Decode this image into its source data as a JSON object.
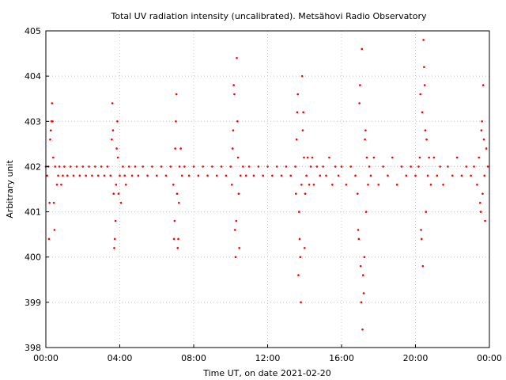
{
  "chart_data": {
    "type": "scatter",
    "title": "Total UV radiation intensity (uncalibrated). Metsähovi Radio Observatory",
    "xlabel": "Time UT, on date 2021-02-20",
    "ylabel": "Arbitrary unit",
    "xlim": [
      "00:00",
      "24:00"
    ],
    "ylim": [
      398,
      405
    ],
    "x_ticks": [
      "00:00",
      "04:00",
      "08:00",
      "12:00",
      "16:00",
      "20:00",
      "00:00"
    ],
    "y_ticks": [
      "398",
      "399",
      "400",
      "401",
      "402",
      "403",
      "404",
      "405"
    ],
    "grid": true,
    "marker_color": "#ff0000",
    "series": [
      {
        "points": [
          [
            "00:00",
            402.0
          ],
          [
            "00:04",
            401.8
          ],
          [
            "00:08",
            402.0
          ],
          [
            "00:10",
            400.4
          ],
          [
            "00:12",
            401.2
          ],
          [
            "00:14",
            402.6
          ],
          [
            "00:16",
            402.8
          ],
          [
            "00:18",
            403.0
          ],
          [
            "00:20",
            403.4
          ],
          [
            "00:22",
            403.0
          ],
          [
            "00:24",
            402.2
          ],
          [
            "00:26",
            401.2
          ],
          [
            "00:28",
            400.6
          ],
          [
            "00:30",
            402.0
          ],
          [
            "00:36",
            401.6
          ],
          [
            "00:40",
            401.8
          ],
          [
            "00:44",
            402.0
          ],
          [
            "00:50",
            401.6
          ],
          [
            "00:55",
            401.8
          ],
          [
            "01:00",
            402.0
          ],
          [
            "01:10",
            401.8
          ],
          [
            "01:20",
            402.0
          ],
          [
            "01:30",
            401.8
          ],
          [
            "01:40",
            402.0
          ],
          [
            "01:50",
            401.8
          ],
          [
            "02:00",
            402.0
          ],
          [
            "02:10",
            401.8
          ],
          [
            "02:20",
            402.0
          ],
          [
            "02:30",
            401.8
          ],
          [
            "02:40",
            402.0
          ],
          [
            "02:50",
            401.8
          ],
          [
            "03:00",
            402.0
          ],
          [
            "03:10",
            401.8
          ],
          [
            "03:20",
            402.0
          ],
          [
            "03:30",
            401.8
          ],
          [
            "03:34",
            402.6
          ],
          [
            "03:36",
            403.4
          ],
          [
            "03:38",
            402.8
          ],
          [
            "03:40",
            401.4
          ],
          [
            "03:42",
            400.2
          ],
          [
            "03:44",
            400.4
          ],
          [
            "03:46",
            400.8
          ],
          [
            "03:48",
            401.6
          ],
          [
            "03:50",
            402.4
          ],
          [
            "03:52",
            403.0
          ],
          [
            "03:54",
            402.2
          ],
          [
            "03:56",
            401.4
          ],
          [
            "04:00",
            401.8
          ],
          [
            "04:04",
            401.2
          ],
          [
            "04:10",
            402.0
          ],
          [
            "04:16",
            401.8
          ],
          [
            "04:20",
            401.6
          ],
          [
            "04:30",
            402.0
          ],
          [
            "04:40",
            401.8
          ],
          [
            "04:50",
            402.0
          ],
          [
            "05:00",
            401.8
          ],
          [
            "05:15",
            402.0
          ],
          [
            "05:30",
            401.8
          ],
          [
            "05:45",
            402.0
          ],
          [
            "06:00",
            401.8
          ],
          [
            "06:15",
            402.0
          ],
          [
            "06:30",
            401.8
          ],
          [
            "06:45",
            402.0
          ],
          [
            "06:54",
            401.6
          ],
          [
            "06:56",
            400.4
          ],
          [
            "06:58",
            400.8
          ],
          [
            "07:00",
            402.4
          ],
          [
            "07:02",
            403.0
          ],
          [
            "07:04",
            403.6
          ],
          [
            "07:06",
            401.4
          ],
          [
            "07:08",
            400.2
          ],
          [
            "07:10",
            400.4
          ],
          [
            "07:12",
            401.2
          ],
          [
            "07:14",
            402.0
          ],
          [
            "07:18",
            402.4
          ],
          [
            "07:22",
            401.8
          ],
          [
            "07:30",
            402.0
          ],
          [
            "07:45",
            401.8
          ],
          [
            "08:00",
            402.0
          ],
          [
            "08:15",
            401.8
          ],
          [
            "08:30",
            402.0
          ],
          [
            "08:45",
            401.8
          ],
          [
            "09:00",
            402.0
          ],
          [
            "09:15",
            401.8
          ],
          [
            "09:30",
            402.0
          ],
          [
            "09:45",
            401.8
          ],
          [
            "10:00",
            402.0
          ],
          [
            "10:04",
            401.6
          ],
          [
            "10:06",
            402.4
          ],
          [
            "10:08",
            402.8
          ],
          [
            "10:10",
            403.8
          ],
          [
            "10:12",
            403.6
          ],
          [
            "10:14",
            400.6
          ],
          [
            "10:16",
            400.0
          ],
          [
            "10:18",
            400.8
          ],
          [
            "10:20",
            404.4
          ],
          [
            "10:22",
            403.0
          ],
          [
            "10:24",
            402.2
          ],
          [
            "10:26",
            401.4
          ],
          [
            "10:28",
            400.2
          ],
          [
            "10:32",
            401.8
          ],
          [
            "10:40",
            402.0
          ],
          [
            "10:50",
            401.8
          ],
          [
            "11:00",
            402.0
          ],
          [
            "11:15",
            401.8
          ],
          [
            "11:30",
            402.0
          ],
          [
            "11:45",
            401.8
          ],
          [
            "12:00",
            402.0
          ],
          [
            "12:15",
            401.8
          ],
          [
            "12:30",
            402.0
          ],
          [
            "12:45",
            401.8
          ],
          [
            "13:00",
            402.0
          ],
          [
            "13:15",
            401.8
          ],
          [
            "13:30",
            402.0
          ],
          [
            "13:32",
            401.4
          ],
          [
            "13:34",
            402.6
          ],
          [
            "13:36",
            403.2
          ],
          [
            "13:38",
            403.6
          ],
          [
            "13:40",
            399.6
          ],
          [
            "13:42",
            401.0
          ],
          [
            "13:44",
            400.4
          ],
          [
            "13:46",
            400.0
          ],
          [
            "13:48",
            399.0
          ],
          [
            "13:50",
            401.6
          ],
          [
            "13:52",
            404.0
          ],
          [
            "13:54",
            402.8
          ],
          [
            "13:56",
            403.2
          ],
          [
            "13:58",
            402.2
          ],
          [
            "14:00",
            400.2
          ],
          [
            "14:02",
            401.4
          ],
          [
            "14:06",
            401.8
          ],
          [
            "14:10",
            402.2
          ],
          [
            "14:15",
            401.6
          ],
          [
            "14:20",
            402.0
          ],
          [
            "14:25",
            402.2
          ],
          [
            "14:30",
            401.6
          ],
          [
            "14:40",
            402.0
          ],
          [
            "14:50",
            401.8
          ],
          [
            "15:00",
            402.0
          ],
          [
            "15:10",
            401.8
          ],
          [
            "15:20",
            402.2
          ],
          [
            "15:30",
            401.6
          ],
          [
            "15:40",
            402.0
          ],
          [
            "15:50",
            401.8
          ],
          [
            "16:00",
            402.0
          ],
          [
            "16:15",
            401.6
          ],
          [
            "16:30",
            402.0
          ],
          [
            "16:45",
            401.8
          ],
          [
            "16:52",
            401.4
          ],
          [
            "16:54",
            400.6
          ],
          [
            "16:56",
            400.4
          ],
          [
            "16:58",
            403.4
          ],
          [
            "17:00",
            403.8
          ],
          [
            "17:02",
            399.8
          ],
          [
            "17:04",
            399.0
          ],
          [
            "17:06",
            404.6
          ],
          [
            "17:08",
            398.4
          ],
          [
            "17:10",
            399.6
          ],
          [
            "17:12",
            399.2
          ],
          [
            "17:14",
            400.0
          ],
          [
            "17:16",
            402.6
          ],
          [
            "17:18",
            402.8
          ],
          [
            "17:20",
            401.0
          ],
          [
            "17:22",
            402.2
          ],
          [
            "17:26",
            401.6
          ],
          [
            "17:30",
            402.0
          ],
          [
            "17:35",
            401.8
          ],
          [
            "17:45",
            402.2
          ],
          [
            "18:00",
            401.6
          ],
          [
            "18:15",
            402.0
          ],
          [
            "18:30",
            401.8
          ],
          [
            "18:45",
            402.2
          ],
          [
            "19:00",
            401.6
          ],
          [
            "19:15",
            402.0
          ],
          [
            "19:30",
            401.8
          ],
          [
            "19:45",
            402.0
          ],
          [
            "20:00",
            401.8
          ],
          [
            "20:10",
            402.0
          ],
          [
            "20:14",
            402.2
          ],
          [
            "20:16",
            403.6
          ],
          [
            "20:18",
            400.6
          ],
          [
            "20:20",
            400.4
          ],
          [
            "20:22",
            403.2
          ],
          [
            "20:24",
            399.8
          ],
          [
            "20:26",
            404.8
          ],
          [
            "20:28",
            404.2
          ],
          [
            "20:30",
            403.8
          ],
          [
            "20:32",
            402.8
          ],
          [
            "20:34",
            401.0
          ],
          [
            "20:36",
            402.6
          ],
          [
            "20:40",
            401.8
          ],
          [
            "20:44",
            402.2
          ],
          [
            "20:50",
            401.6
          ],
          [
            "21:00",
            402.2
          ],
          [
            "21:10",
            401.8
          ],
          [
            "21:20",
            402.0
          ],
          [
            "21:30",
            401.6
          ],
          [
            "21:45",
            402.0
          ],
          [
            "22:00",
            401.8
          ],
          [
            "22:15",
            402.2
          ],
          [
            "22:30",
            401.8
          ],
          [
            "22:45",
            402.0
          ],
          [
            "23:00",
            401.8
          ],
          [
            "23:10",
            402.0
          ],
          [
            "23:20",
            401.6
          ],
          [
            "23:26",
            402.2
          ],
          [
            "23:30",
            401.2
          ],
          [
            "23:32",
            401.0
          ],
          [
            "23:34",
            402.8
          ],
          [
            "23:36",
            403.0
          ],
          [
            "23:38",
            401.4
          ],
          [
            "23:40",
            403.8
          ],
          [
            "23:42",
            402.6
          ],
          [
            "23:44",
            401.8
          ],
          [
            "23:46",
            400.8
          ],
          [
            "23:50",
            402.4
          ],
          [
            "23:55",
            402.0
          ]
        ]
      }
    ]
  }
}
